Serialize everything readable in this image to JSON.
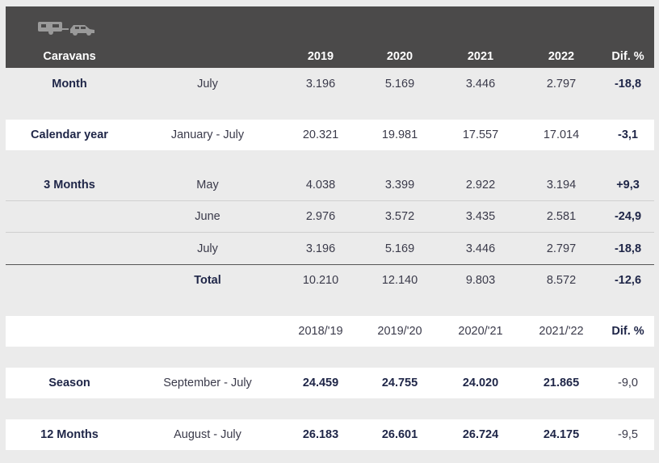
{
  "header": {
    "title": "Caravans",
    "years": [
      "2019",
      "2020",
      "2021",
      "2022"
    ],
    "diff_label": "Dif. %",
    "icons": [
      "caravan-icon",
      "car-icon"
    ]
  },
  "rows": {
    "month": {
      "label": "Month",
      "period": "July",
      "values": [
        "3.196",
        "5.169",
        "3.446",
        "2.797"
      ],
      "diff": "-18,8"
    },
    "calendar": {
      "label": "Calendar year",
      "period": "January - July",
      "values": [
        "20.321",
        "19.981",
        "17.557",
        "17.014"
      ],
      "diff": "-3,1"
    },
    "three_months": {
      "label": "3 Months",
      "items": [
        {
          "period": "May",
          "values": [
            "4.038",
            "3.399",
            "2.922",
            "3.194"
          ],
          "diff": "+9,3"
        },
        {
          "period": "June",
          "values": [
            "2.976",
            "3.572",
            "3.435",
            "2.581"
          ],
          "diff": "-24,9"
        },
        {
          "period": "July",
          "values": [
            "3.196",
            "5.169",
            "3.446",
            "2.797"
          ],
          "diff": "-18,8"
        }
      ],
      "total": {
        "label": "Total",
        "values": [
          "10.210",
          "12.140",
          "9.803",
          "8.572"
        ],
        "diff": "-12,6"
      }
    },
    "season_header": {
      "years": [
        "2018/'19",
        "2019/'20",
        "2020/'21",
        "2021/'22"
      ],
      "diff_label": "Dif. %"
    },
    "season": {
      "label": "Season",
      "period": "September - July",
      "values": [
        "24.459",
        "24.755",
        "24.020",
        "21.865"
      ],
      "diff": "-9,0"
    },
    "twelve": {
      "label": "12 Months",
      "period": "August - July",
      "values": [
        "26.183",
        "26.601",
        "26.724",
        "24.175"
      ],
      "diff": "-9,5"
    }
  }
}
